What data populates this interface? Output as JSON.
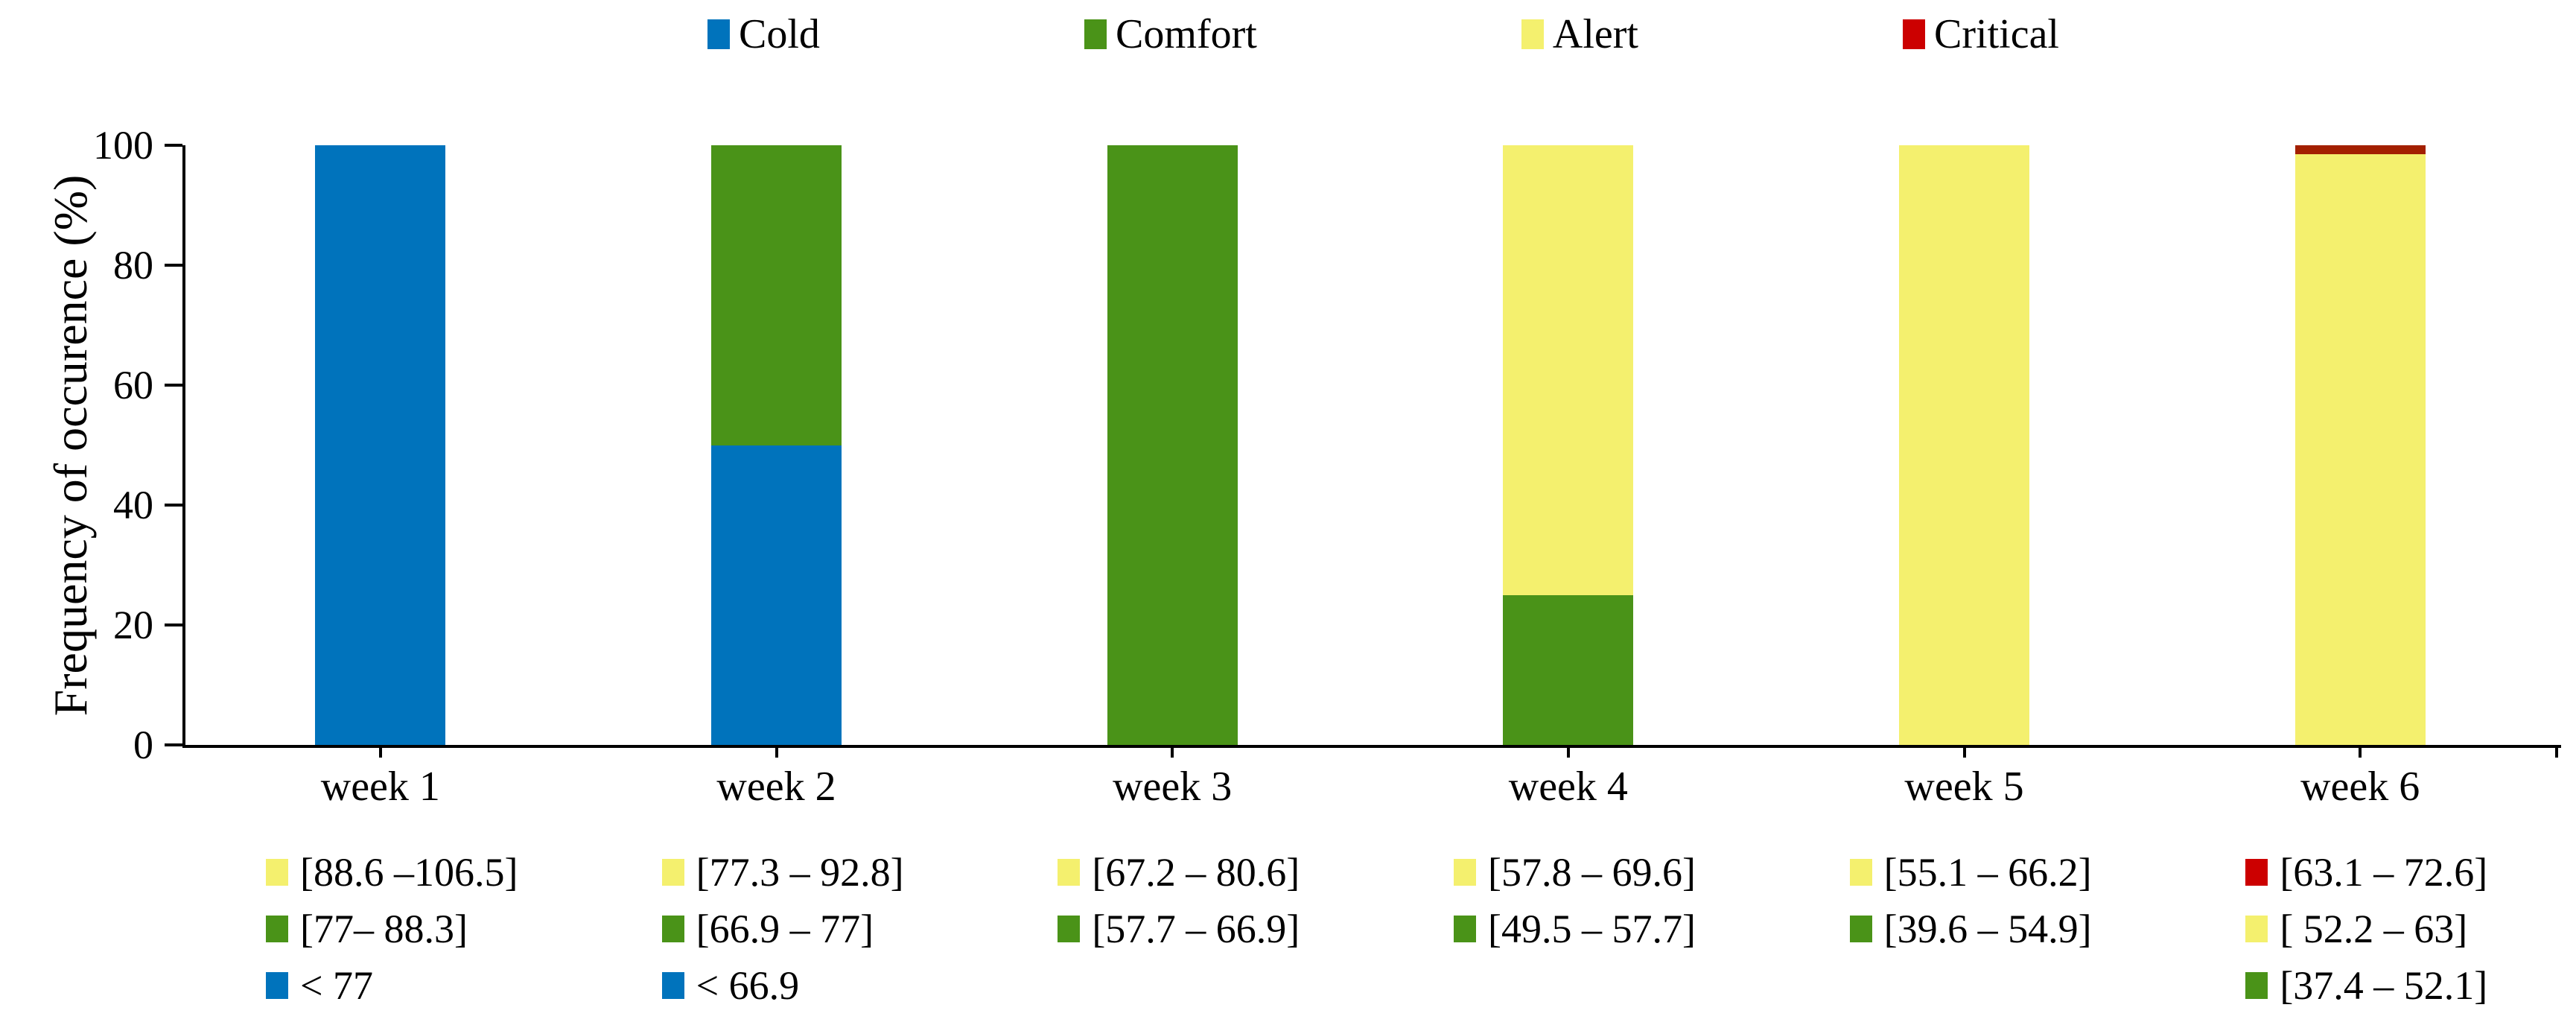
{
  "chart_data": {
    "type": "bar",
    "subtype": "stacked-100",
    "title": "",
    "xlabel": "",
    "ylabel": "Frequency of occurence (%)",
    "ylim": [
      0,
      100
    ],
    "yticks": [
      0,
      20,
      40,
      60,
      80,
      100
    ],
    "grid": false,
    "legend_position": "top",
    "categories": [
      "week 1",
      "week 2",
      "week 3",
      "week 4",
      "week 5",
      "week 6"
    ],
    "series": [
      {
        "name": "Cold",
        "color": "#0073BC",
        "values": [
          100,
          50,
          0,
          0,
          0,
          0
        ]
      },
      {
        "name": "Comfort",
        "color": "#4A9318",
        "values": [
          0,
          50,
          100,
          25,
          0,
          0
        ]
      },
      {
        "name": "Alert",
        "color": "#F4F06E",
        "values": [
          0,
          0,
          0,
          75,
          100,
          98.5
        ]
      },
      {
        "name": "Critical",
        "color": "#CC0000",
        "bar_color": "#A32000",
        "values": [
          0,
          0,
          0,
          0,
          0,
          1.5
        ]
      }
    ],
    "range_annotations": [
      [
        {
          "series": "Alert",
          "label": "[88.6 –106.5]"
        },
        {
          "series": "Comfort",
          "label": "[77– 88.3]"
        },
        {
          "series": "Cold",
          "label": "< 77"
        }
      ],
      [
        {
          "series": "Alert",
          "label": "[77.3 – 92.8]"
        },
        {
          "series": "Comfort",
          "label": "[66.9 – 77]"
        },
        {
          "series": "Cold",
          "label": "< 66.9"
        }
      ],
      [
        {
          "series": "Alert",
          "label": "[67.2 – 80.6]"
        },
        {
          "series": "Comfort",
          "label": "[57.7 – 66.9]"
        }
      ],
      [
        {
          "series": "Alert",
          "label": "[57.8 – 69.6]"
        },
        {
          "series": "Comfort",
          "label": "[49.5 – 57.7]"
        }
      ],
      [
        {
          "series": "Alert",
          "label": "[55.1 – 66.2]"
        },
        {
          "series": "Comfort",
          "label": "[39.6 – 54.9]"
        }
      ],
      [
        {
          "series": "Critical",
          "label": "[63.1 – 72.6]"
        },
        {
          "series": "Alert",
          "label": "[ 52.2 – 63]"
        },
        {
          "series": "Comfort",
          "label": "[37.4 – 52.1]"
        }
      ]
    ],
    "colors": {
      "axis": "#000000",
      "background": "#ffffff"
    }
  }
}
